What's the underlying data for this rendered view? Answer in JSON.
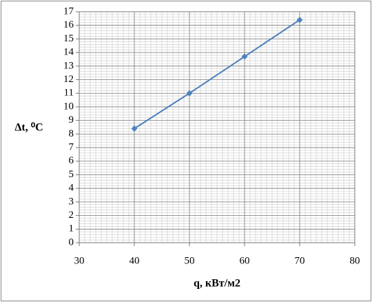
{
  "chart_data": {
    "type": "line",
    "x_label": "q, кВт/м2",
    "y_label": "Δt, ⁰C",
    "x": [
      40,
      50,
      60,
      70
    ],
    "series": [
      {
        "color": "#4a7ebb",
        "values": [
          8.4,
          11.0,
          13.7,
          16.4
        ]
      }
    ],
    "xlim": [
      30,
      80
    ],
    "xticks": [
      30,
      40,
      50,
      60,
      70,
      80
    ],
    "ylim": [
      0,
      17
    ],
    "yticks": [
      0,
      1,
      2,
      3,
      4,
      5,
      6,
      7,
      8,
      9,
      10,
      11,
      12,
      13,
      14,
      15,
      16,
      17
    ],
    "grid": true,
    "minor_grid": true
  }
}
